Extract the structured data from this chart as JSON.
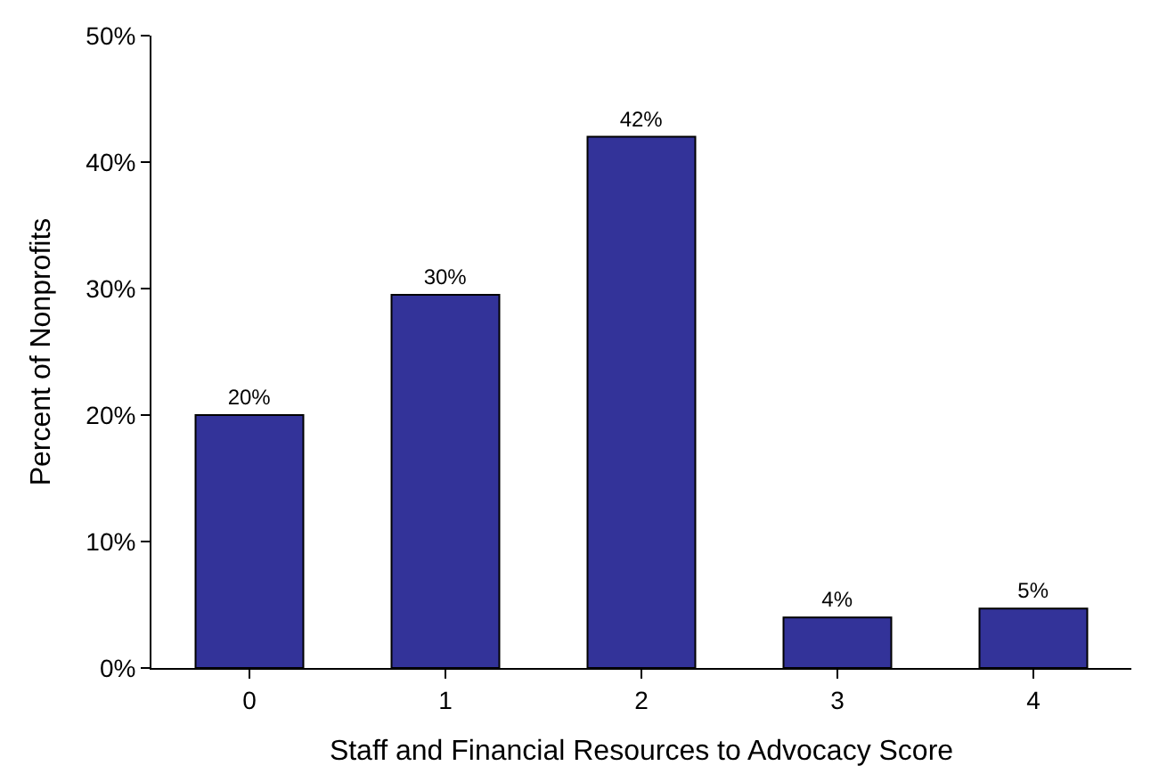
{
  "chart_data": {
    "type": "bar",
    "xlabel": "Staff and Financial Resources to Advocacy Score",
    "ylabel": "Percent of Nonprofits",
    "categories": [
      "0",
      "1",
      "2",
      "3",
      "4"
    ],
    "values": [
      20,
      29.5,
      42,
      4,
      4.7
    ],
    "value_labels": [
      "20%",
      "30%",
      "42%",
      "4%",
      "5%"
    ],
    "color": "#333399",
    "ylim": [
      0,
      50
    ],
    "yticks": [
      {
        "value": 0,
        "label": "0%"
      },
      {
        "value": 10,
        "label": "10%"
      },
      {
        "value": 20,
        "label": "20%"
      },
      {
        "value": 30,
        "label": "30%"
      },
      {
        "value": 40,
        "label": "40%"
      },
      {
        "value": 50,
        "label": "50%"
      }
    ],
    "legend": false
  }
}
